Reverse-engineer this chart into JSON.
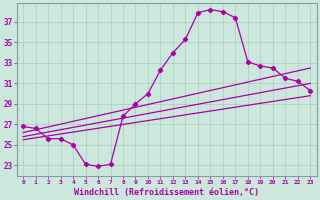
{
  "xlabel": "Windchill (Refroidissement éolien,°C)",
  "bg_color": "#cce8dd",
  "line_color": "#aa00aa",
  "grid_color": "#aaccbb",
  "spine_color": "#8899aa",
  "xlim": [
    -0.5,
    23.5
  ],
  "ylim": [
    22.0,
    38.8
  ],
  "xticks": [
    0,
    1,
    2,
    3,
    4,
    5,
    6,
    7,
    8,
    9,
    10,
    11,
    12,
    13,
    14,
    15,
    16,
    17,
    18,
    19,
    20,
    21,
    22,
    23
  ],
  "yticks": [
    23,
    25,
    27,
    29,
    31,
    33,
    35,
    37
  ],
  "curve1_x": [
    0,
    1,
    2,
    3,
    4,
    5,
    6,
    7,
    8,
    9,
    10,
    11,
    12,
    13,
    14,
    15,
    16,
    17,
    18,
    19,
    20,
    21,
    22,
    23
  ],
  "curve1_y": [
    26.8,
    26.6,
    25.6,
    25.6,
    25.0,
    23.1,
    22.9,
    23.1,
    27.8,
    29.0,
    30.0,
    32.3,
    34.0,
    35.3,
    37.9,
    38.2,
    38.0,
    37.4,
    33.1,
    32.7,
    32.5,
    31.5,
    31.2,
    30.3
  ],
  "line1_x": [
    0,
    23
  ],
  "line1_y": [
    25.5,
    29.8
  ],
  "line2_x": [
    0,
    23
  ],
  "line2_y": [
    25.8,
    31.0
  ],
  "line3_x": [
    0,
    23
  ],
  "line3_y": [
    26.2,
    32.5
  ]
}
